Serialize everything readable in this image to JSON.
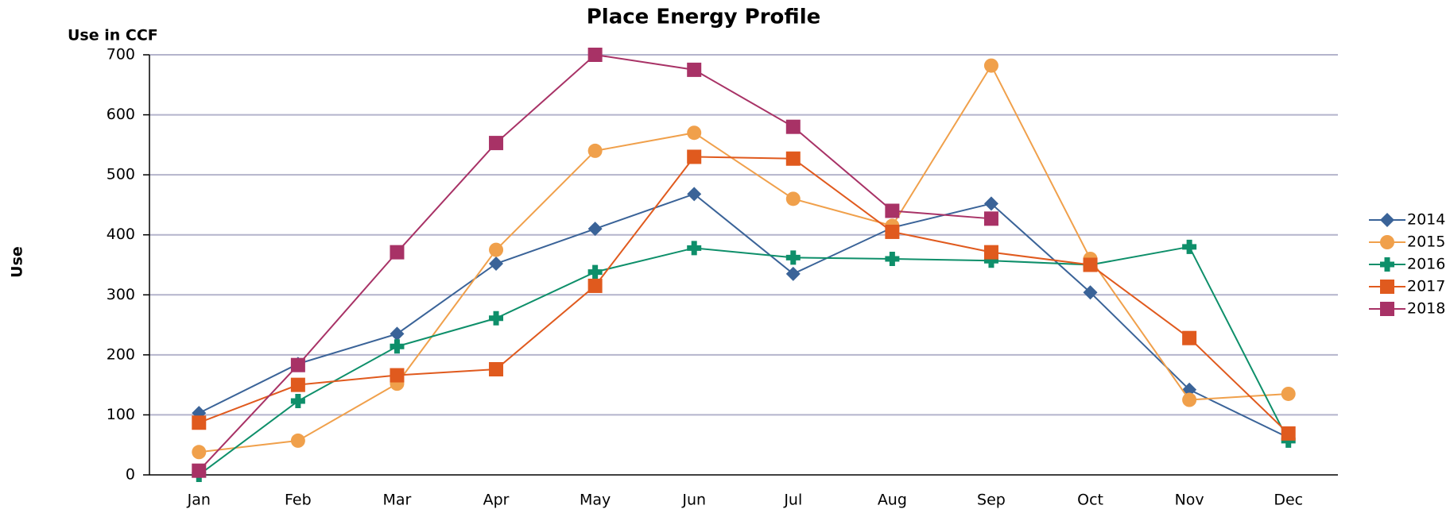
{
  "chart_data": {
    "type": "line",
    "title": "Place Energy Profile",
    "y_label": "Use",
    "y_unit_label": "Use in CCF",
    "categories": [
      "Jan",
      "Feb",
      "Mar",
      "Apr",
      "May",
      "Jun",
      "Jul",
      "Aug",
      "Sep",
      "Oct",
      "Nov",
      "Dec"
    ],
    "series": [
      {
        "name": "2014",
        "color": "#3a6398",
        "marker": "diamond",
        "values": [
          103,
          185,
          235,
          352,
          410,
          468,
          335,
          412,
          452,
          304,
          142,
          62
        ]
      },
      {
        "name": "2015",
        "color": "#f0a04b",
        "marker": "circle",
        "values": [
          38,
          57,
          152,
          375,
          540,
          570,
          460,
          415,
          682,
          360,
          125,
          135
        ]
      },
      {
        "name": "2016",
        "color": "#0e8f6a",
        "marker": "plus",
        "values": [
          0,
          123,
          214,
          261,
          338,
          378,
          362,
          360,
          357,
          350,
          380,
          57
        ]
      },
      {
        "name": "2017",
        "color": "#e05a1e",
        "marker": "square",
        "values": [
          87,
          150,
          166,
          176,
          315,
          530,
          527,
          405,
          371,
          350,
          228,
          69
        ]
      },
      {
        "name": "2018",
        "color": "#a83266",
        "marker": "square",
        "values": [
          7,
          183,
          371,
          553,
          700,
          675,
          580,
          440,
          427,
          null,
          null,
          null
        ]
      }
    ],
    "ylim": [
      0,
      700
    ],
    "yticks": [
      0,
      100,
      200,
      300,
      400,
      500,
      600,
      700
    ],
    "grid": true,
    "legend": "right"
  }
}
